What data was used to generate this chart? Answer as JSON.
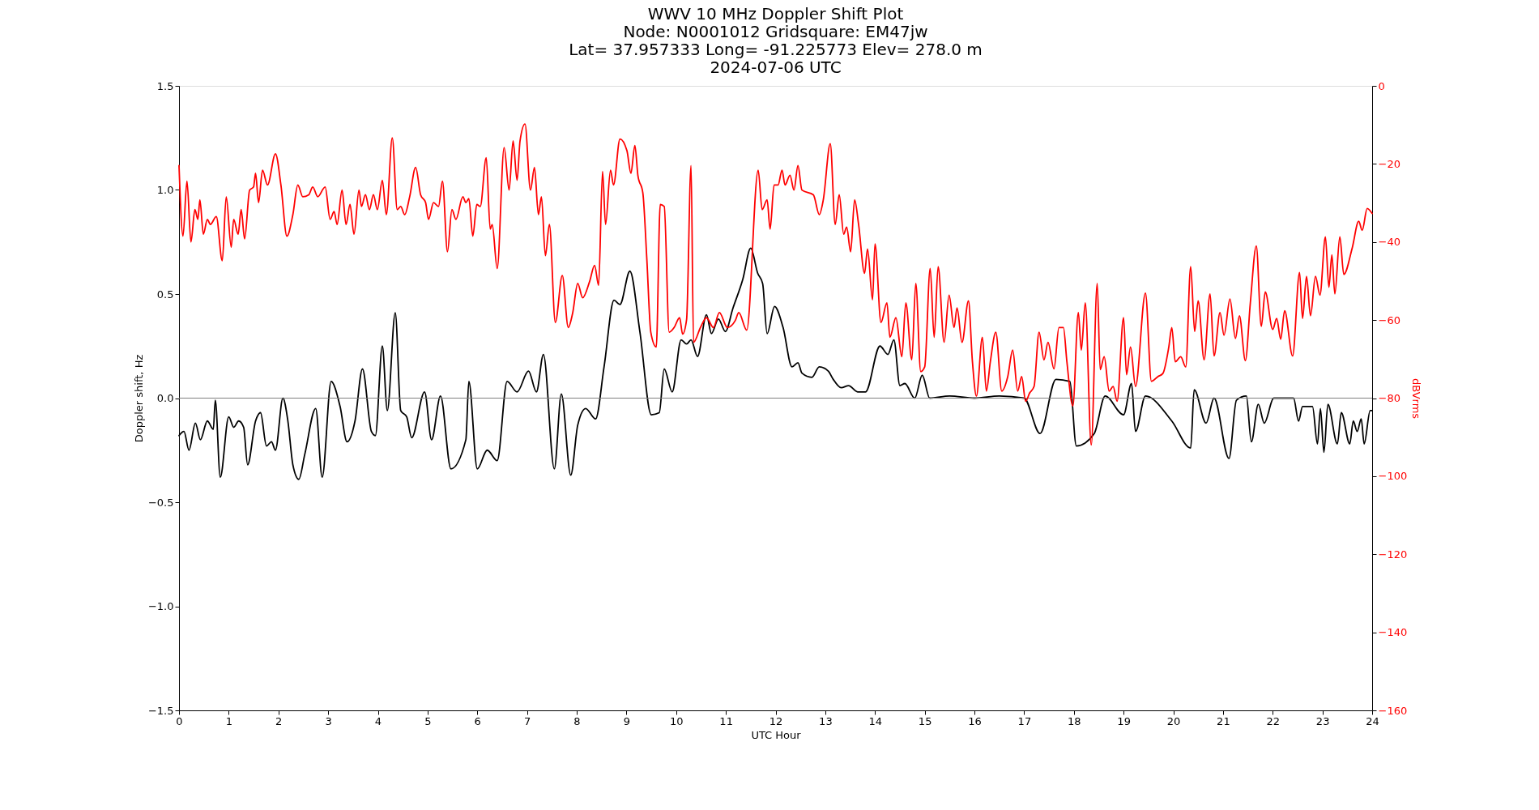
{
  "chart_data": {
    "type": "line",
    "title": "WWV 10 MHz Doppler Shift Plot",
    "subtitle": "Node:  N0001012     Gridsquare:  EM47jw\nLat= 37.957333    Long= -91.225773    Elev= 278.0 m\n2024-07-06  UTC",
    "xlabel": "UTC Hour",
    "ylabel": "Doppler shift, Hz",
    "y2label": "dBVrms",
    "xlim": [
      0,
      24
    ],
    "xticks": [
      0,
      1,
      2,
      3,
      4,
      5,
      6,
      7,
      8,
      9,
      10,
      11,
      12,
      13,
      14,
      15,
      16,
      17,
      18,
      19,
      20,
      21,
      22,
      23,
      24
    ],
    "ylim": [
      -1.5,
      1.5
    ],
    "yticks": [
      {
        "value": -1.5,
        "label": "−1.5"
      },
      {
        "value": -1.0,
        "label": "−1.0"
      },
      {
        "value": -0.5,
        "label": "−0.5"
      },
      {
        "value": 0,
        "label": "0.0"
      },
      {
        "value": 0.5,
        "label": "0.5"
      },
      {
        "value": 1.0,
        "label": "1.0"
      },
      {
        "value": 1.5,
        "label": "1.5"
      }
    ],
    "y2lim": [
      -160,
      0
    ],
    "y2ticks": [
      {
        "value": -160,
        "label": "−160"
      },
      {
        "value": -140,
        "label": "−140"
      },
      {
        "value": -120,
        "label": "−120"
      },
      {
        "value": -100,
        "label": "−100"
      },
      {
        "value": -80,
        "label": "−80"
      },
      {
        "value": -60,
        "label": "−60"
      },
      {
        "value": -40,
        "label": "−40"
      },
      {
        "value": -20,
        "label": "−20"
      },
      0
    ],
    "grid": false,
    "line_style": "solid",
    "marker": "none",
    "ref_lines": [
      {
        "axis": "y",
        "value": 0,
        "label": null,
        "color": "#808080"
      }
    ],
    "series": [
      {
        "color": "#000000",
        "x": [
          0,
          0.1,
          0.2,
          0.33,
          0.43,
          0.57,
          0.69,
          0.73,
          0.83,
          1.0,
          1.1,
          1.2,
          1.3,
          1.38,
          1.54,
          1.64,
          1.76,
          1.86,
          1.94,
          2.09,
          2.19,
          2.29,
          2.41,
          2.53,
          2.75,
          2.88,
          3.06,
          3.24,
          3.38,
          3.54,
          3.69,
          3.87,
          3.95,
          4.09,
          4.19,
          4.35,
          4.46,
          4.58,
          4.68,
          4.94,
          5.08,
          5.26,
          5.47,
          5.77,
          5.83,
          6.0,
          6.2,
          6.4,
          6.6,
          6.8,
          7.03,
          7.19,
          7.33,
          7.55,
          7.69,
          7.88,
          8.02,
          8.18,
          8.38,
          8.55,
          8.75,
          8.87,
          9.07,
          9.27,
          9.5,
          9.66,
          9.76,
          9.92,
          10.1,
          10.21,
          10.3,
          10.43,
          10.61,
          10.71,
          10.85,
          10.99,
          11.14,
          11.34,
          11.5,
          11.64,
          11.74,
          11.83,
          11.98,
          12.15,
          12.33,
          12.45,
          12.53,
          12.73,
          12.88,
          13.06,
          13.16,
          13.32,
          13.47,
          13.65,
          13.81,
          14.1,
          14.26,
          14.38,
          14.5,
          14.6,
          14.8,
          14.95,
          15.1,
          15.5,
          16.0,
          16.5,
          17.0,
          17.32,
          17.64,
          17.92,
          18.05,
          18.41,
          18.63,
          19.0,
          19.16,
          19.24,
          19.44,
          19.97,
          20.35,
          20.42,
          20.66,
          20.82,
          21.12,
          21.27,
          21.47,
          21.57,
          21.71,
          21.83,
          22.02,
          22.42,
          22.52,
          22.6,
          22.8,
          22.9,
          22.96,
          23.03,
          23.11,
          23.3,
          23.38,
          23.55,
          23.62,
          23.7,
          23.78,
          23.84,
          23.96,
          24
        ],
        "values": [
          -0.18,
          -0.16,
          -0.25,
          -0.12,
          -0.2,
          -0.11,
          -0.15,
          -0.01,
          -0.38,
          -0.09,
          -0.14,
          -0.11,
          -0.14,
          -0.32,
          -0.11,
          -0.07,
          -0.23,
          -0.21,
          -0.25,
          0.0,
          -0.11,
          -0.32,
          -0.39,
          -0.27,
          -0.05,
          -0.38,
          0.08,
          -0.04,
          -0.21,
          -0.11,
          0.14,
          -0.16,
          -0.18,
          0.25,
          -0.06,
          0.41,
          -0.06,
          -0.09,
          -0.19,
          0.03,
          -0.2,
          0.01,
          -0.34,
          -0.2,
          0.08,
          -0.34,
          -0.25,
          -0.3,
          0.08,
          0.03,
          0.13,
          0.03,
          0.21,
          -0.34,
          0.02,
          -0.37,
          -0.13,
          -0.05,
          -0.1,
          0.15,
          0.47,
          0.45,
          0.61,
          0.32,
          -0.08,
          -0.07,
          0.14,
          0.03,
          0.28,
          0.26,
          0.28,
          0.2,
          0.4,
          0.31,
          0.38,
          0.32,
          0.43,
          0.57,
          0.72,
          0.6,
          0.55,
          0.31,
          0.44,
          0.34,
          0.15,
          0.17,
          0.12,
          0.1,
          0.15,
          0.13,
          0.09,
          0.05,
          0.06,
          0.03,
          0.03,
          0.25,
          0.21,
          0.28,
          0.06,
          0.07,
          0.0,
          0.11,
          0.0,
          0.01,
          0.0,
          0.01,
          0.0,
          -0.17,
          0.09,
          0.08,
          -0.23,
          -0.17,
          0.01,
          -0.08,
          0.07,
          -0.16,
          0.01,
          -0.11,
          -0.24,
          0.04,
          -0.12,
          0.0,
          -0.29,
          -0.01,
          0.01,
          -0.21,
          -0.03,
          -0.12,
          0.0,
          0.0,
          -0.11,
          -0.04,
          -0.04,
          -0.22,
          -0.05,
          -0.26,
          -0.03,
          -0.22,
          -0.07,
          -0.22,
          -0.11,
          -0.16,
          -0.1,
          -0.22,
          -0.06,
          -0.06
        ]
      },
      {
        "color": "#ff0000",
        "axis": "y2",
        "x": [
          0,
          0.08,
          0.16,
          0.24,
          0.32,
          0.38,
          0.42,
          0.49,
          0.57,
          0.63,
          0.75,
          0.87,
          0.95,
          1.05,
          1.1,
          1.19,
          1.25,
          1.32,
          1.42,
          1.5,
          1.54,
          1.6,
          1.68,
          1.78,
          1.94,
          2.05,
          2.17,
          2.29,
          2.39,
          2.49,
          2.61,
          2.69,
          2.79,
          2.94,
          3.04,
          3.12,
          3.18,
          3.28,
          3.36,
          3.44,
          3.52,
          3.62,
          3.67,
          3.75,
          3.83,
          3.91,
          3.99,
          4.09,
          4.17,
          4.29,
          4.39,
          4.46,
          4.54,
          4.64,
          4.76,
          4.86,
          4.96,
          5.02,
          5.12,
          5.22,
          5.3,
          5.4,
          5.49,
          5.57,
          5.71,
          5.77,
          5.83,
          5.91,
          5.99,
          6.06,
          6.18,
          6.26,
          6.3,
          6.4,
          6.54,
          6.64,
          6.72,
          6.8,
          6.86,
          6.96,
          7.07,
          7.15,
          7.23,
          7.29,
          7.37,
          7.45,
          7.57,
          7.71,
          7.83,
          7.92,
          8.02,
          8.12,
          8.26,
          8.36,
          8.44,
          8.52,
          8.58,
          8.68,
          8.74,
          8.87,
          9.01,
          9.09,
          9.17,
          9.23,
          9.33,
          9.41,
          9.49,
          9.6,
          9.68,
          9.76,
          9.86,
          9.96,
          10.07,
          10.13,
          10.21,
          10.3,
          10.35,
          10.49,
          10.61,
          10.75,
          10.87,
          11.03,
          11.19,
          11.26,
          11.42,
          11.65,
          11.73,
          11.83,
          11.89,
          11.97,
          12.05,
          12.13,
          12.19,
          12.29,
          12.37,
          12.45,
          12.53,
          12.76,
          12.88,
          12.96,
          13.1,
          13.2,
          13.28,
          13.37,
          13.43,
          13.51,
          13.59,
          13.67,
          13.79,
          13.85,
          13.95,
          14.0,
          14.12,
          14.24,
          14.3,
          14.42,
          14.54,
          14.62,
          14.74,
          14.82,
          14.92,
          15.0,
          15.11,
          15.19,
          15.27,
          15.39,
          15.49,
          15.59,
          15.65,
          15.75,
          15.88,
          15.96,
          16.04,
          16.16,
          16.24,
          16.32,
          16.43,
          16.55,
          16.67,
          16.77,
          16.87,
          16.95,
          17.03,
          17.11,
          17.2,
          17.3,
          17.4,
          17.48,
          17.6,
          17.7,
          17.79,
          17.86,
          17.98,
          18.09,
          18.15,
          18.23,
          18.35,
          18.47,
          18.53,
          18.61,
          18.71,
          18.79,
          18.87,
          19.0,
          19.06,
          19.14,
          19.24,
          19.44,
          19.56,
          19.69,
          19.79,
          19.91,
          19.97,
          20.04,
          20.15,
          20.25,
          20.35,
          20.43,
          20.5,
          20.62,
          20.74,
          20.82,
          20.94,
          21.02,
          21.14,
          21.25,
          21.33,
          21.45,
          21.55,
          21.67,
          21.77,
          21.85,
          22.0,
          22.08,
          22.16,
          22.24,
          22.4,
          22.54,
          22.6,
          22.68,
          22.76,
          22.86,
          22.95,
          23.06,
          23.13,
          23.19,
          23.25,
          23.35,
          23.43,
          23.6,
          23.73,
          23.8,
          23.9,
          24
        ],
        "values": [
          -20.4,
          -38.5,
          -24.4,
          -40,
          -31.7,
          -34.2,
          -29.2,
          -38,
          -34.2,
          -35.5,
          -33.5,
          -44.8,
          -28.4,
          -41.3,
          -34.2,
          -38,
          -31.7,
          -39.2,
          -26.7,
          -25.9,
          -22.4,
          -29.9,
          -21.6,
          -25.4,
          -17.4,
          -25.4,
          -38.5,
          -33,
          -25.4,
          -28.4,
          -27.9,
          -25.9,
          -28.4,
          -25.9,
          -34.2,
          -32.2,
          -35.5,
          -26.7,
          -35.5,
          -30.4,
          -38,
          -26.7,
          -30.9,
          -27.9,
          -31.7,
          -27.9,
          -31.7,
          -24.2,
          -33,
          -13.3,
          -31.7,
          -30.9,
          -33,
          -28.4,
          -20.9,
          -27.9,
          -29.9,
          -34.2,
          -29.9,
          -30.9,
          -24.4,
          -42.5,
          -31.7,
          -34.2,
          -28.4,
          -29.9,
          -28.9,
          -38.5,
          -30.4,
          -30.9,
          -18.4,
          -36.7,
          -35.5,
          -46.8,
          -15.8,
          -26.7,
          -14.1,
          -24.2,
          -14.1,
          -9.8,
          -26.7,
          -20.9,
          -33,
          -28.4,
          -43.5,
          -35.5,
          -60.6,
          -48.6,
          -61.9,
          -58.1,
          -50.6,
          -54.3,
          -50.1,
          -46,
          -51.1,
          -21.9,
          -35.5,
          -21.6,
          -25.4,
          -13.6,
          -16.6,
          -22.4,
          -15.3,
          -22.9,
          -27.4,
          -44.3,
          -63.1,
          -66.9,
          -30.4,
          -30.9,
          -63.1,
          -61.9,
          -59.4,
          -63.6,
          -59.9,
          -20.4,
          -65.7,
          -61.9,
          -59.4,
          -61.9,
          -58.1,
          -61.9,
          -60.1,
          -58.1,
          -62.6,
          -21.6,
          -31.7,
          -29.2,
          -36.7,
          -25.4,
          -25.4,
          -21.6,
          -25.4,
          -22.9,
          -26.7,
          -20.4,
          -26.7,
          -27.9,
          -33,
          -29.2,
          -14.8,
          -35.5,
          -27.9,
          -38,
          -36.2,
          -42.5,
          -29.2,
          -35.5,
          -48,
          -41.8,
          -54.8,
          -40.5,
          -60.6,
          -55.6,
          -64.4,
          -59.4,
          -69.4,
          -55.6,
          -70.2,
          -50.6,
          -73.2,
          -72,
          -46.8,
          -64.4,
          -46.3,
          -65.7,
          -53.6,
          -61.9,
          -56.9,
          -65.7,
          -55.1,
          -70.7,
          -79.5,
          -64.4,
          -78.2,
          -70.7,
          -63.1,
          -78.2,
          -74.5,
          -67.7,
          -78.2,
          -74.5,
          -80.8,
          -78.7,
          -77,
          -63.1,
          -70.2,
          -65.7,
          -72.5,
          -61.9,
          -61.9,
          -70.7,
          -82,
          -58.1,
          -67.7,
          -55.6,
          -92,
          -50.6,
          -72.7,
          -69.4,
          -78.2,
          -77,
          -80.8,
          -59.4,
          -74,
          -66.9,
          -77,
          -53.1,
          -75.7,
          -74.5,
          -73.7,
          -66.9,
          -61.9,
          -70.7,
          -69.4,
          -72,
          -46.3,
          -62.9,
          -55.1,
          -70.2,
          -53.3,
          -69.2,
          -58.1,
          -63.9,
          -54.6,
          -64.7,
          -58.9,
          -70.4,
          -55.6,
          -41,
          -61.6,
          -52.8,
          -62.4,
          -59.6,
          -64.9,
          -57.6,
          -69.2,
          -47.8,
          -59.6,
          -48.8,
          -58.9,
          -48.8,
          -53.6,
          -38.7,
          -51.6,
          -43.3,
          -53.3,
          -38.7,
          -48.3,
          -41.5,
          -34.7,
          -37,
          -31.4,
          -32.7
        ]
      }
    ]
  }
}
